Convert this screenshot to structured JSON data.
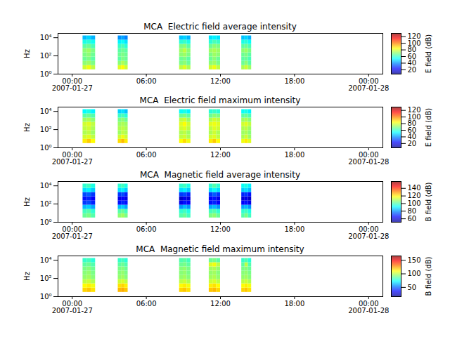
{
  "chart_data": [
    {
      "type": "heatmap",
      "title": "MCA  Electric field average intensity",
      "ylabel": "Hz",
      "log": "y",
      "xlim": [
        "2007-01-26T22:51",
        "2007-01-28T01:09"
      ],
      "xticks": [
        {
          "value": "2007-01-27T00:00",
          "label": "00:00\n2007-01-27"
        },
        {
          "value": "2007-01-27T06:00",
          "label": "06:00"
        },
        {
          "value": "2007-01-27T12:00",
          "label": "12:00"
        },
        {
          "value": "2007-01-27T18:00",
          "label": "18:00"
        },
        {
          "value": "2007-01-28T00:00",
          "label": "00:00\n2007-01-28"
        }
      ],
      "ylim": [
        1,
        30000
      ],
      "yticks": [
        {
          "value": 1,
          "label": "10⁰"
        },
        {
          "value": 100,
          "label": "10²"
        },
        {
          "value": 10000,
          "label": "10⁴"
        }
      ],
      "time_bins": [
        [
          "2007-01-27T00:52",
          "2007-01-27T01:12"
        ],
        [
          "2007-01-27T01:12",
          "2007-01-27T01:32"
        ],
        [
          "2007-01-27T01:32",
          "2007-01-27T01:53"
        ],
        [
          "2007-01-27T03:43",
          "2007-01-27T03:59"
        ],
        [
          "2007-01-27T03:59",
          "2007-01-27T04:15"
        ],
        [
          "2007-01-27T04:15",
          "2007-01-27T04:31"
        ],
        [
          "2007-01-27T08:41",
          "2007-01-27T08:59"
        ],
        [
          "2007-01-27T08:59",
          "2007-01-27T09:17"
        ],
        [
          "2007-01-27T09:17",
          "2007-01-27T09:36"
        ],
        [
          "2007-01-27T11:05",
          "2007-01-27T11:23"
        ],
        [
          "2007-01-27T11:23",
          "2007-01-27T11:41"
        ],
        [
          "2007-01-27T11:41",
          "2007-01-27T12:00"
        ],
        [
          "2007-01-27T13:43",
          "2007-01-27T13:59"
        ],
        [
          "2007-01-27T13:59",
          "2007-01-27T14:15"
        ],
        [
          "2007-01-27T14:15",
          "2007-01-27T14:31"
        ]
      ],
      "freq_bins": [
        3,
        8.8,
        26,
        76,
        220,
        650,
        1900,
        5500,
        16000
      ],
      "values": [
        [
          78,
          70,
          66,
          68,
          70,
          64,
          56,
          45
        ],
        [
          82,
          72,
          68,
          70,
          72,
          66,
          58,
          48
        ],
        [
          76,
          68,
          64,
          66,
          68,
          62,
          55,
          44
        ],
        [
          80,
          70,
          64,
          66,
          64,
          60,
          52,
          40
        ],
        [
          84,
          74,
          68,
          68,
          66,
          62,
          54,
          42
        ],
        [
          78,
          70,
          66,
          66,
          64,
          58,
          50,
          38
        ],
        [
          76,
          68,
          66,
          70,
          72,
          68,
          58,
          46
        ],
        [
          80,
          70,
          68,
          72,
          76,
          70,
          60,
          48
        ],
        [
          74,
          66,
          64,
          68,
          70,
          64,
          56,
          44
        ],
        [
          78,
          70,
          66,
          68,
          72,
          66,
          58,
          50
        ],
        [
          82,
          72,
          70,
          72,
          74,
          70,
          62,
          52
        ],
        [
          76,
          68,
          66,
          70,
          72,
          68,
          60,
          50
        ],
        [
          74,
          66,
          64,
          66,
          70,
          64,
          56,
          46
        ],
        [
          78,
          70,
          66,
          68,
          72,
          66,
          58,
          48
        ],
        [
          72,
          64,
          62,
          64,
          68,
          62,
          54,
          44
        ]
      ],
      "colorbar": {
        "label": "E field (dB)",
        "range": [
          7,
          130
        ],
        "ticks": [
          20,
          40,
          60,
          80,
          100,
          120
        ]
      }
    },
    {
      "type": "heatmap",
      "title": "MCA  Electric field maximum intensity",
      "ylabel": "Hz",
      "log": "y",
      "xlim": [
        "2007-01-26T22:51",
        "2007-01-28T01:09"
      ],
      "xticks": [
        {
          "value": "2007-01-27T00:00",
          "label": "00:00\n2007-01-27"
        },
        {
          "value": "2007-01-27T06:00",
          "label": "06:00"
        },
        {
          "value": "2007-01-27T12:00",
          "label": "12:00"
        },
        {
          "value": "2007-01-27T18:00",
          "label": "18:00"
        },
        {
          "value": "2007-01-28T00:00",
          "label": "00:00\n2007-01-28"
        }
      ],
      "ylim": [
        1,
        30000
      ],
      "yticks": [
        {
          "value": 1,
          "label": "10⁰"
        },
        {
          "value": 100,
          "label": "10²"
        },
        {
          "value": 10000,
          "label": "10⁴"
        }
      ],
      "time_bins": [
        [
          "2007-01-27T00:52",
          "2007-01-27T01:12"
        ],
        [
          "2007-01-27T01:12",
          "2007-01-27T01:32"
        ],
        [
          "2007-01-27T01:32",
          "2007-01-27T01:53"
        ],
        [
          "2007-01-27T03:43",
          "2007-01-27T03:59"
        ],
        [
          "2007-01-27T03:59",
          "2007-01-27T04:15"
        ],
        [
          "2007-01-27T04:15",
          "2007-01-27T04:31"
        ],
        [
          "2007-01-27T08:41",
          "2007-01-27T08:59"
        ],
        [
          "2007-01-27T08:59",
          "2007-01-27T09:17"
        ],
        [
          "2007-01-27T09:17",
          "2007-01-27T09:36"
        ],
        [
          "2007-01-27T11:05",
          "2007-01-27T11:23"
        ],
        [
          "2007-01-27T11:23",
          "2007-01-27T11:41"
        ],
        [
          "2007-01-27T11:41",
          "2007-01-27T12:00"
        ],
        [
          "2007-01-27T13:43",
          "2007-01-27T13:59"
        ],
        [
          "2007-01-27T13:59",
          "2007-01-27T14:15"
        ],
        [
          "2007-01-27T14:15",
          "2007-01-27T14:31"
        ]
      ],
      "freq_bins": [
        3,
        8.8,
        26,
        76,
        220,
        650,
        1900,
        5500,
        16000
      ],
      "values": [
        [
          86,
          78,
          74,
          76,
          78,
          72,
          64,
          53
        ],
        [
          90,
          80,
          76,
          78,
          80,
          74,
          66,
          56
        ],
        [
          84,
          76,
          72,
          74,
          76,
          70,
          63,
          52
        ],
        [
          88,
          78,
          72,
          74,
          72,
          68,
          60,
          48
        ],
        [
          92,
          82,
          76,
          76,
          74,
          70,
          62,
          50
        ],
        [
          86,
          78,
          74,
          74,
          72,
          66,
          58,
          46
        ],
        [
          84,
          76,
          74,
          78,
          80,
          76,
          66,
          54
        ],
        [
          88,
          78,
          76,
          80,
          84,
          78,
          68,
          56
        ],
        [
          82,
          74,
          72,
          76,
          78,
          72,
          64,
          52
        ],
        [
          86,
          78,
          74,
          76,
          80,
          74,
          66,
          58
        ],
        [
          90,
          80,
          78,
          80,
          82,
          78,
          70,
          60
        ],
        [
          84,
          76,
          74,
          78,
          80,
          76,
          68,
          58
        ],
        [
          82,
          74,
          72,
          74,
          78,
          72,
          64,
          54
        ],
        [
          86,
          78,
          74,
          76,
          80,
          74,
          66,
          56
        ],
        [
          80,
          72,
          70,
          72,
          76,
          70,
          62,
          52
        ]
      ],
      "colorbar": {
        "label": "E field (dB)",
        "range": [
          7,
          130
        ],
        "ticks": [
          20,
          40,
          60,
          80,
          100,
          120
        ]
      }
    },
    {
      "type": "heatmap",
      "title": "MCA  Magnetic field average intensity",
      "ylabel": "Hz",
      "log": "y",
      "xlim": [
        "2007-01-26T22:51",
        "2007-01-28T01:09"
      ],
      "xticks": [
        {
          "value": "2007-01-27T00:00",
          "label": "00:00\n2007-01-27"
        },
        {
          "value": "2007-01-27T06:00",
          "label": "06:00"
        },
        {
          "value": "2007-01-27T12:00",
          "label": "12:00"
        },
        {
          "value": "2007-01-27T18:00",
          "label": "18:00"
        },
        {
          "value": "2007-01-28T00:00",
          "label": "00:00\n2007-01-28"
        }
      ],
      "ylim": [
        1,
        30000
      ],
      "yticks": [
        {
          "value": 1,
          "label": "10⁰"
        },
        {
          "value": 100,
          "label": "10²"
        },
        {
          "value": 10000,
          "label": "10⁴"
        }
      ],
      "time_bins": [
        [
          "2007-01-27T00:52",
          "2007-01-27T01:12"
        ],
        [
          "2007-01-27T01:12",
          "2007-01-27T01:32"
        ],
        [
          "2007-01-27T01:32",
          "2007-01-27T01:53"
        ],
        [
          "2007-01-27T03:43",
          "2007-01-27T03:59"
        ],
        [
          "2007-01-27T03:59",
          "2007-01-27T04:15"
        ],
        [
          "2007-01-27T04:15",
          "2007-01-27T04:31"
        ],
        [
          "2007-01-27T08:41",
          "2007-01-27T08:59"
        ],
        [
          "2007-01-27T08:59",
          "2007-01-27T09:17"
        ],
        [
          "2007-01-27T09:17",
          "2007-01-27T09:36"
        ],
        [
          "2007-01-27T11:05",
          "2007-01-27T11:23"
        ],
        [
          "2007-01-27T11:23",
          "2007-01-27T11:41"
        ],
        [
          "2007-01-27T11:41",
          "2007-01-27T12:00"
        ],
        [
          "2007-01-27T13:43",
          "2007-01-27T13:59"
        ],
        [
          "2007-01-27T13:59",
          "2007-01-27T14:15"
        ],
        [
          "2007-01-27T14:15",
          "2007-01-27T14:31"
        ]
      ],
      "freq_bins": [
        3,
        8.8,
        26,
        76,
        220,
        650,
        1900,
        5500,
        16000
      ],
      "values": [
        [
          102,
          98,
          84,
          70,
          66,
          72,
          88,
          96
        ],
        [
          104,
          100,
          86,
          72,
          68,
          74,
          90,
          98
        ],
        [
          100,
          96,
          82,
          68,
          64,
          70,
          86,
          94
        ],
        [
          106,
          100,
          84,
          66,
          62,
          70,
          88,
          96
        ],
        [
          108,
          102,
          86,
          68,
          64,
          72,
          90,
          98
        ],
        [
          104,
          98,
          82,
          66,
          62,
          68,
          86,
          94
        ],
        [
          100,
          96,
          80,
          62,
          58,
          70,
          88,
          96
        ],
        [
          102,
          98,
          84,
          66,
          62,
          72,
          90,
          98
        ],
        [
          98,
          94,
          80,
          64,
          60,
          68,
          86,
          94
        ],
        [
          104,
          98,
          82,
          66,
          64,
          70,
          88,
          96
        ],
        [
          106,
          100,
          84,
          68,
          66,
          74,
          92,
          100
        ],
        [
          102,
          96,
          80,
          64,
          62,
          70,
          88,
          96
        ],
        [
          100,
          96,
          82,
          64,
          60,
          68,
          86,
          92
        ],
        [
          104,
          98,
          84,
          66,
          62,
          70,
          88,
          94
        ],
        [
          98,
          94,
          80,
          62,
          58,
          66,
          84,
          90
        ]
      ],
      "colorbar": {
        "label": "B field (dB)",
        "range": [
          51,
          158
        ],
        "ticks": [
          60,
          80,
          100,
          120,
          140
        ]
      }
    },
    {
      "type": "heatmap",
      "title": "MCA  Magnetic field maximum intensity",
      "ylabel": "Hz",
      "log": "y",
      "xlim": [
        "2007-01-26T22:51",
        "2007-01-28T01:09"
      ],
      "xticks": [
        {
          "value": "2007-01-27T00:00",
          "label": "00:00\n2007-01-27"
        },
        {
          "value": "2007-01-27T06:00",
          "label": "06:00"
        },
        {
          "value": "2007-01-27T12:00",
          "label": "12:00"
        },
        {
          "value": "2007-01-27T18:00",
          "label": "18:00"
        },
        {
          "value": "2007-01-28T00:00",
          "label": "00:00\n2007-01-28"
        }
      ],
      "ylim": [
        1,
        30000
      ],
      "yticks": [
        {
          "value": 1,
          "label": "10⁰"
        },
        {
          "value": 100,
          "label": "10²"
        },
        {
          "value": 10000,
          "label": "10⁴"
        }
      ],
      "time_bins": [
        [
          "2007-01-27T00:52",
          "2007-01-27T01:12"
        ],
        [
          "2007-01-27T01:12",
          "2007-01-27T01:32"
        ],
        [
          "2007-01-27T01:32",
          "2007-01-27T01:53"
        ],
        [
          "2007-01-27T03:43",
          "2007-01-27T03:59"
        ],
        [
          "2007-01-27T03:59",
          "2007-01-27T04:15"
        ],
        [
          "2007-01-27T04:15",
          "2007-01-27T04:31"
        ],
        [
          "2007-01-27T08:41",
          "2007-01-27T08:59"
        ],
        [
          "2007-01-27T08:59",
          "2007-01-27T09:17"
        ],
        [
          "2007-01-27T09:17",
          "2007-01-27T09:36"
        ],
        [
          "2007-01-27T11:05",
          "2007-01-27T11:23"
        ],
        [
          "2007-01-27T11:23",
          "2007-01-27T11:41"
        ],
        [
          "2007-01-27T11:41",
          "2007-01-27T12:00"
        ],
        [
          "2007-01-27T13:43",
          "2007-01-27T13:59"
        ],
        [
          "2007-01-27T13:59",
          "2007-01-27T14:15"
        ],
        [
          "2007-01-27T14:15",
          "2007-01-27T14:31"
        ]
      ],
      "freq_bins": [
        3,
        8.8,
        26,
        76,
        220,
        650,
        1900,
        5500,
        16000
      ],
      "values": [
        [
          116,
          110,
          100,
          94,
          92,
          90,
          86,
          80
        ],
        [
          118,
          112,
          102,
          96,
          94,
          92,
          88,
          82
        ],
        [
          114,
          108,
          98,
          92,
          90,
          88,
          84,
          78
        ],
        [
          120,
          114,
          102,
          94,
          92,
          90,
          86,
          80
        ],
        [
          122,
          116,
          104,
          96,
          94,
          92,
          88,
          82
        ],
        [
          118,
          112,
          100,
          92,
          90,
          88,
          84,
          78
        ],
        [
          116,
          110,
          100,
          94,
          92,
          92,
          88,
          84
        ],
        [
          118,
          112,
          102,
          96,
          94,
          94,
          90,
          86
        ],
        [
          114,
          108,
          98,
          92,
          90,
          90,
          86,
          82
        ],
        [
          118,
          112,
          102,
          96,
          94,
          96,
          104,
          88
        ],
        [
          120,
          114,
          104,
          98,
          96,
          98,
          108,
          90
        ],
        [
          116,
          110,
          100,
          94,
          92,
          94,
          100,
          86
        ],
        [
          116,
          110,
          100,
          94,
          92,
          90,
          86,
          80
        ],
        [
          118,
          112,
          102,
          96,
          94,
          92,
          100,
          84
        ],
        [
          114,
          108,
          98,
          92,
          90,
          88,
          84,
          78
        ]
      ],
      "colorbar": {
        "label": "B field (dB)",
        "range": [
          16,
          166
        ],
        "ticks": [
          50,
          100,
          150
        ]
      }
    }
  ]
}
